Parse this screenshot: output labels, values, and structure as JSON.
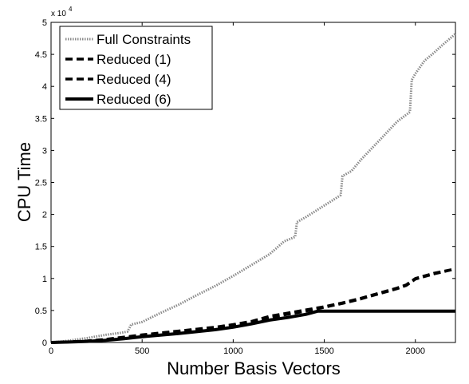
{
  "chart_data": {
    "type": "line",
    "title": "",
    "xlabel": "Number Basis Vectors",
    "ylabel": "CPU Time",
    "y_scale_note": "x 10",
    "y_scale_exp": "4",
    "xlim": [
      0,
      2220
    ],
    "ylim": [
      0,
      50000
    ],
    "xticks": [
      0,
      500,
      1000,
      1500,
      2000
    ],
    "yticks": [
      0,
      5000,
      10000,
      15000,
      20000,
      25000,
      30000,
      35000,
      40000,
      45000,
      50000
    ],
    "ytick_labels": [
      "0",
      "0.5",
      "1",
      "1.5",
      "2",
      "2.5",
      "3",
      "3.5",
      "4",
      "4.5",
      "5"
    ],
    "legend_position": "top-left",
    "grid": false,
    "series": [
      {
        "name": "Full Constraints",
        "style": "dotted",
        "x": [
          0,
          100,
          200,
          300,
          380,
          420,
          440,
          500,
          600,
          700,
          800,
          900,
          1000,
          1100,
          1200,
          1280,
          1340,
          1350,
          1400,
          1500,
          1590,
          1600,
          1650,
          1700,
          1800,
          1900,
          1970,
          1980,
          2000,
          2050,
          2100,
          2150,
          2220
        ],
        "y": [
          0,
          300,
          700,
          1200,
          1500,
          1700,
          2800,
          3200,
          4600,
          5900,
          7400,
          8800,
          10400,
          12100,
          13800,
          15800,
          16500,
          18800,
          19600,
          21400,
          23000,
          26000,
          26800,
          28500,
          31500,
          34500,
          36000,
          41000,
          42000,
          44000,
          45200,
          46500,
          48200
        ]
      },
      {
        "name": "Reduced (1)",
        "style": "dashed",
        "x": [
          0,
          100,
          200,
          300,
          400,
          500,
          600,
          700,
          800,
          900,
          1000,
          1100,
          1200,
          1300,
          1400,
          1500,
          1600,
          1700,
          1800,
          1900,
          1950,
          2000,
          2100,
          2220
        ],
        "y": [
          0,
          100,
          250,
          500,
          850,
          1200,
          1500,
          1800,
          2100,
          2400,
          2800,
          3300,
          4100,
          4600,
          5100,
          5600,
          6200,
          6900,
          7700,
          8500,
          9000,
          10000,
          10800,
          11500
        ]
      },
      {
        "name": "Reduced (4)",
        "style": "dashed",
        "x": [
          0,
          100,
          200,
          300,
          400,
          500,
          600,
          700,
          800,
          900,
          1000,
          1100,
          1200,
          1300,
          1400,
          1500,
          1600,
          1700,
          1800,
          1900,
          1950,
          2000,
          2100,
          2220
        ],
        "y": [
          0,
          90,
          220,
          450,
          780,
          1100,
          1400,
          1700,
          2000,
          2300,
          2700,
          3200,
          3900,
          4400,
          4900,
          5500,
          6100,
          6800,
          7600,
          8400,
          8900,
          9900,
          10700,
          11500
        ]
      },
      {
        "name": "Reduced (6)",
        "style": "solid",
        "x": [
          0,
          100,
          200,
          300,
          400,
          500,
          600,
          700,
          800,
          900,
          1000,
          1100,
          1200,
          1300,
          1400,
          1465,
          1500,
          1600,
          1800,
          2000,
          2220
        ],
        "y": [
          0,
          80,
          180,
          350,
          600,
          900,
          1150,
          1400,
          1700,
          2000,
          2400,
          2900,
          3500,
          3900,
          4400,
          4900,
          4900,
          4900,
          4900,
          4900,
          4900
        ]
      }
    ]
  }
}
